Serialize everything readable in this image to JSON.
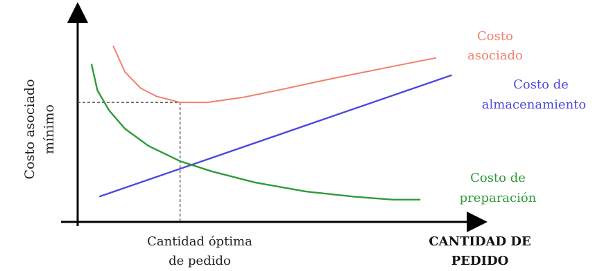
{
  "chart_data": {
    "type": "line",
    "ylabel": [
      "Costo asociado",
      "mínimo"
    ],
    "xlabel": [
      "CANTIDAD DE",
      "PEDIDO"
    ],
    "optimum_label": [
      "Cantidad óptima",
      "de pedido"
    ],
    "x_range": [
      0,
      10
    ],
    "y_range": [
      0,
      10
    ],
    "grid": false,
    "series": [
      {
        "key": "associated",
        "label": [
          "Costo",
          "asociado"
        ],
        "color": "#f08070",
        "x": [
          0.9,
          1.2,
          1.6,
          2.0,
          2.6,
          3.3,
          4.2,
          5.2,
          6.4,
          7.8,
          9.1
        ],
        "y": [
          8.7,
          7.4,
          6.6,
          6.2,
          5.9,
          5.9,
          6.15,
          6.55,
          7.05,
          7.6,
          8.1
        ]
      },
      {
        "key": "storage",
        "label": [
          "Costo de",
          "almacenamiento"
        ],
        "color": "#4a4ae0",
        "x": [
          0.55,
          9.5
        ],
        "y": [
          1.25,
          7.25
        ]
      },
      {
        "key": "preparation",
        "label": [
          "Costo de",
          "preparación"
        ],
        "color": "#2e9a38",
        "x": [
          0.35,
          0.5,
          0.8,
          1.2,
          1.8,
          2.6,
          3.4,
          4.5,
          5.8,
          7.0,
          8.0,
          8.7
        ],
        "y": [
          7.8,
          6.5,
          5.5,
          4.6,
          3.75,
          3.0,
          2.5,
          1.95,
          1.5,
          1.25,
          1.1,
          1.1
        ]
      }
    ],
    "optimum": {
      "x": 2.6,
      "y_min_cost": 5.9,
      "y_intersection": 3.0
    }
  }
}
